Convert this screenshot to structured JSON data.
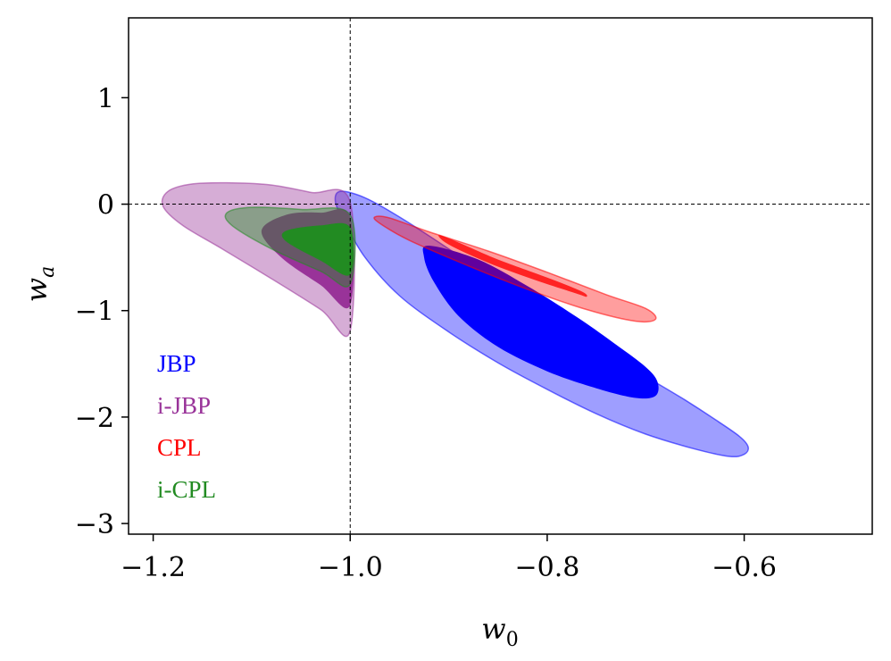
{
  "chart_data": {
    "type": "contour",
    "xlabel": "w",
    "xlabel_sub": "0",
    "ylabel": "w",
    "ylabel_sub": "a",
    "xlim": [
      -1.225,
      -0.47
    ],
    "ylim": [
      -3.1,
      1.75
    ],
    "xticks": [
      {
        "value": -1.2,
        "label": "−1.2"
      },
      {
        "value": -1.0,
        "label": "−1.0"
      },
      {
        "value": -0.8,
        "label": "−0.8"
      },
      {
        "value": -0.6,
        "label": "−0.6"
      }
    ],
    "yticks": [
      {
        "value": 1,
        "label": "1"
      },
      {
        "value": 0,
        "label": "0"
      },
      {
        "value": -1,
        "label": "−1"
      },
      {
        "value": -2,
        "label": "−2"
      },
      {
        "value": -3,
        "label": "−3"
      }
    ],
    "reference_lines": {
      "x": -1.0,
      "y": 0.0
    },
    "legend_position": "lower-left",
    "series": [
      {
        "name": "JBP",
        "color": "#0000ff",
        "contours": [
          {
            "level": "outer",
            "opacity": 0.38,
            "points": [
              [
                -1.01,
                0.12
              ],
              [
                -0.985,
                0.06
              ],
              [
                -0.95,
                -0.12
              ],
              [
                -0.9,
                -0.42
              ],
              [
                -0.85,
                -0.74
              ],
              [
                -0.8,
                -1.06
              ],
              [
                -0.75,
                -1.36
              ],
              [
                -0.7,
                -1.62
              ],
              [
                -0.66,
                -1.84
              ],
              [
                -0.63,
                -2.02
              ],
              [
                -0.605,
                -2.18
              ],
              [
                -0.596,
                -2.28
              ],
              [
                -0.6,
                -2.35
              ],
              [
                -0.615,
                -2.37
              ],
              [
                -0.65,
                -2.3
              ],
              [
                -0.7,
                -2.16
              ],
              [
                -0.75,
                -1.97
              ],
              [
                -0.8,
                -1.74
              ],
              [
                -0.85,
                -1.49
              ],
              [
                -0.9,
                -1.2
              ],
              [
                -0.95,
                -0.86
              ],
              [
                -0.985,
                -0.5
              ],
              [
                -1.005,
                -0.18
              ],
              [
                -1.015,
                0.02
              ]
            ]
          },
          {
            "level": "inner",
            "opacity": 1.0,
            "points": [
              [
                -0.92,
                -0.39
              ],
              [
                -0.87,
                -0.52
              ],
              [
                -0.82,
                -0.77
              ],
              [
                -0.77,
                -1.06
              ],
              [
                -0.73,
                -1.32
              ],
              [
                -0.7,
                -1.53
              ],
              [
                -0.688,
                -1.67
              ],
              [
                -0.69,
                -1.8
              ],
              [
                -0.71,
                -1.82
              ],
              [
                -0.75,
                -1.73
              ],
              [
                -0.8,
                -1.57
              ],
              [
                -0.85,
                -1.34
              ],
              [
                -0.89,
                -1.05
              ],
              [
                -0.915,
                -0.73
              ],
              [
                -0.925,
                -0.5
              ]
            ]
          }
        ]
      },
      {
        "name": "i-JBP",
        "color": "#993399",
        "contours": [
          {
            "level": "outer",
            "opacity": 0.4,
            "points": [
              [
                -1.0,
                -1.19
              ],
              [
                -1.03,
                -0.99
              ],
              [
                -1.08,
                -0.7
              ],
              [
                -1.13,
                -0.42
              ],
              [
                -1.17,
                -0.2
              ],
              [
                -1.19,
                -0.02
              ],
              [
                -1.185,
                0.12
              ],
              [
                -1.16,
                0.19
              ],
              [
                -1.12,
                0.2
              ],
              [
                -1.08,
                0.18
              ],
              [
                -1.04,
                0.11
              ],
              [
                -1.0,
                0.02
              ]
            ]
          },
          {
            "level": "inner",
            "opacity": 1.0,
            "points": [
              [
                -1.0,
                -0.95
              ],
              [
                -1.03,
                -0.76
              ],
              [
                -1.07,
                -0.5
              ],
              [
                -1.09,
                -0.25
              ],
              [
                -1.065,
                -0.1
              ],
              [
                -1.03,
                -0.08
              ],
              [
                -1.0,
                -0.12
              ]
            ]
          }
        ]
      },
      {
        "name": "CPL",
        "color": "#ff0000",
        "contours": [
          {
            "level": "outer",
            "opacity": 0.38,
            "points": [
              [
                -0.975,
                -0.12
              ],
              [
                -0.97,
                -0.18
              ],
              [
                -0.94,
                -0.34
              ],
              [
                -0.88,
                -0.58
              ],
              [
                -0.82,
                -0.8
              ],
              [
                -0.76,
                -0.99
              ],
              [
                -0.71,
                -1.1
              ],
              [
                -0.69,
                -1.08
              ],
              [
                -0.7,
                -0.98
              ],
              [
                -0.74,
                -0.85
              ],
              [
                -0.8,
                -0.64
              ],
              [
                -0.86,
                -0.44
              ],
              [
                -0.92,
                -0.26
              ],
              [
                -0.96,
                -0.13
              ]
            ]
          },
          {
            "level": "inner",
            "opacity": 0.78,
            "points": [
              [
                -0.91,
                -0.29
              ],
              [
                -0.9,
                -0.38
              ],
              [
                -0.86,
                -0.55
              ],
              [
                -0.81,
                -0.72
              ],
              [
                -0.77,
                -0.84
              ],
              [
                -0.76,
                -0.87
              ],
              [
                -0.765,
                -0.82
              ],
              [
                -0.8,
                -0.69
              ],
              [
                -0.85,
                -0.52
              ],
              [
                -0.89,
                -0.36
              ]
            ]
          }
        ]
      },
      {
        "name": "i-CPL",
        "color": "#228b22",
        "contours": [
          {
            "level": "outer",
            "opacity": 0.42,
            "points": [
              [
                -1.0,
                -0.75
              ],
              [
                -1.03,
                -0.63
              ],
              [
                -1.08,
                -0.42
              ],
              [
                -1.12,
                -0.2
              ],
              [
                -1.125,
                -0.08
              ],
              [
                -1.1,
                -0.03
              ],
              [
                -1.05,
                -0.05
              ],
              [
                -1.0,
                -0.1
              ]
            ]
          },
          {
            "level": "inner",
            "opacity": 1.0,
            "points": [
              [
                -1.0,
                -0.66
              ],
              [
                -1.03,
                -0.53
              ],
              [
                -1.065,
                -0.35
              ],
              [
                -1.065,
                -0.25
              ],
              [
                -1.03,
                -0.2
              ],
              [
                -1.0,
                -0.22
              ]
            ]
          }
        ]
      }
    ]
  },
  "legend": [
    {
      "label": "JBP",
      "color": "#0000ff"
    },
    {
      "label": "i-JBP",
      "color": "#993399"
    },
    {
      "label": "CPL",
      "color": "#ff0000"
    },
    {
      "label": "i-CPL",
      "color": "#228b22"
    }
  ]
}
